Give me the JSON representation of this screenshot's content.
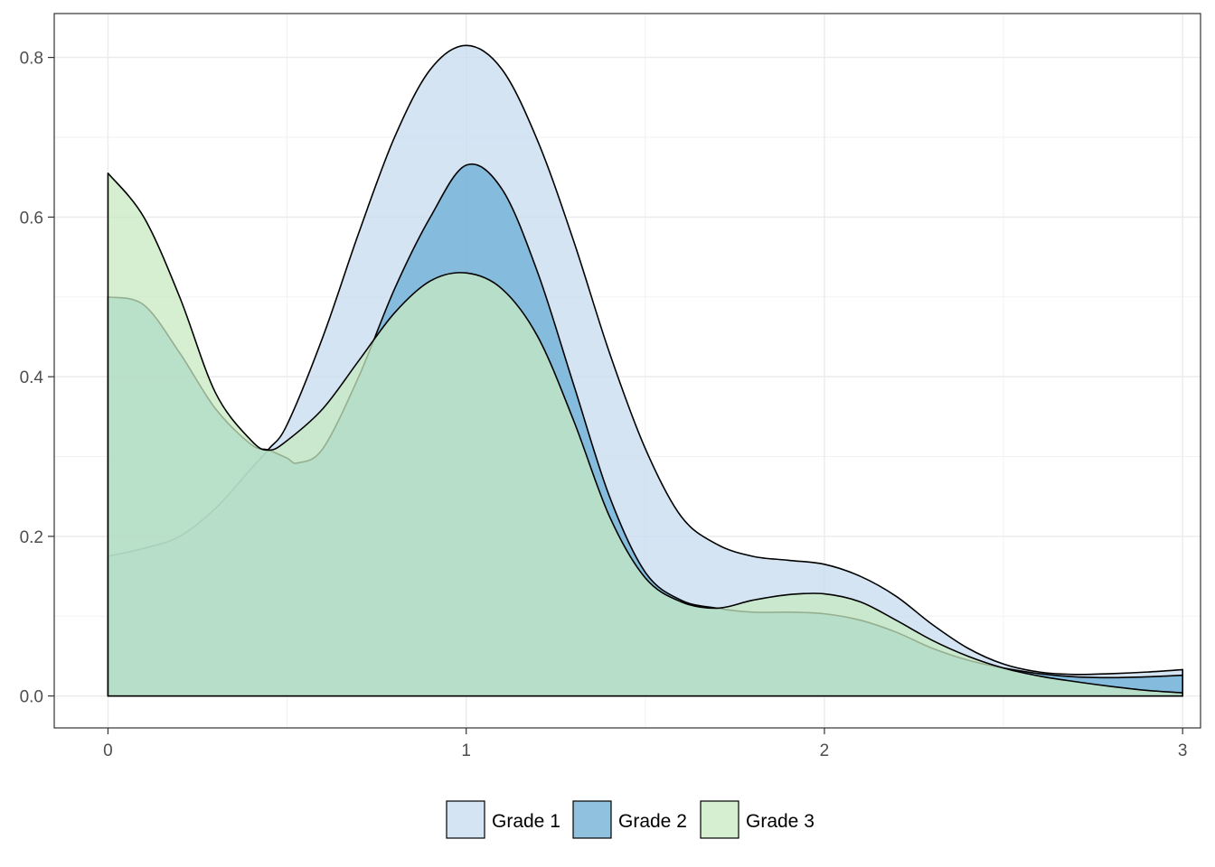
{
  "chart_data": {
    "type": "area",
    "title": "",
    "xlabel": "",
    "ylabel": "",
    "xlim": [
      -0.15,
      3.05
    ],
    "ylim": [
      -0.04,
      0.855
    ],
    "x_ticks": [
      0,
      1,
      2,
      3
    ],
    "x_tick_labels": [
      "0",
      "1",
      "2",
      "3"
    ],
    "y_ticks": [
      0.0,
      0.2,
      0.4,
      0.6,
      0.8
    ],
    "y_tick_labels": [
      "0.0",
      "0.2",
      "0.4",
      "0.6",
      "0.8"
    ],
    "grid": true,
    "legend_position": "bottom",
    "series": [
      {
        "name": "Grade 1",
        "color": "#c6dbef",
        "x": [
          0,
          0.1,
          0.2,
          0.3,
          0.4,
          0.45,
          0.5,
          0.6,
          0.7,
          0.8,
          0.9,
          1.0,
          1.1,
          1.2,
          1.3,
          1.4,
          1.5,
          1.6,
          1.7,
          1.8,
          1.9,
          2.0,
          2.1,
          2.2,
          2.3,
          2.4,
          2.5,
          2.6,
          2.7,
          2.8,
          2.9,
          3.0
        ],
        "values": [
          0.175,
          0.185,
          0.2,
          0.235,
          0.285,
          0.31,
          0.34,
          0.45,
          0.58,
          0.7,
          0.785,
          0.815,
          0.785,
          0.695,
          0.57,
          0.43,
          0.31,
          0.225,
          0.19,
          0.175,
          0.17,
          0.165,
          0.15,
          0.125,
          0.09,
          0.06,
          0.04,
          0.03,
          0.027,
          0.028,
          0.03,
          0.033
        ]
      },
      {
        "name": "Grade 2",
        "color": "#6baed6",
        "x": [
          0,
          0.1,
          0.2,
          0.3,
          0.4,
          0.45,
          0.5,
          0.53,
          0.6,
          0.7,
          0.8,
          0.9,
          1.0,
          1.1,
          1.2,
          1.3,
          1.4,
          1.5,
          1.6,
          1.7,
          1.8,
          1.9,
          2.0,
          2.1,
          2.2,
          2.3,
          2.4,
          2.5,
          2.6,
          2.7,
          2.8,
          2.9,
          3.0
        ],
        "values": [
          0.5,
          0.49,
          0.43,
          0.36,
          0.315,
          0.308,
          0.298,
          0.292,
          0.31,
          0.4,
          0.51,
          0.6,
          0.665,
          0.635,
          0.53,
          0.39,
          0.25,
          0.155,
          0.12,
          0.11,
          0.105,
          0.105,
          0.103,
          0.095,
          0.08,
          0.06,
          0.045,
          0.035,
          0.028,
          0.024,
          0.023,
          0.024,
          0.026
        ]
      },
      {
        "name": "Grade 3",
        "color": "#c7e9c0",
        "x": [
          0,
          0.1,
          0.2,
          0.3,
          0.4,
          0.45,
          0.5,
          0.6,
          0.7,
          0.8,
          0.9,
          1.0,
          1.1,
          1.2,
          1.3,
          1.4,
          1.5,
          1.6,
          1.7,
          1.8,
          1.9,
          2.0,
          2.1,
          2.2,
          2.3,
          2.4,
          2.5,
          2.6,
          2.7,
          2.8,
          2.9,
          3.0
        ],
        "values": [
          0.655,
          0.6,
          0.5,
          0.38,
          0.32,
          0.308,
          0.32,
          0.36,
          0.42,
          0.48,
          0.52,
          0.53,
          0.51,
          0.45,
          0.345,
          0.225,
          0.148,
          0.118,
          0.11,
          0.12,
          0.127,
          0.128,
          0.118,
          0.095,
          0.07,
          0.05,
          0.035,
          0.025,
          0.018,
          0.012,
          0.007,
          0.004
        ]
      }
    ]
  },
  "legend": {
    "items": [
      "Grade 1",
      "Grade 2",
      "Grade 3"
    ]
  }
}
